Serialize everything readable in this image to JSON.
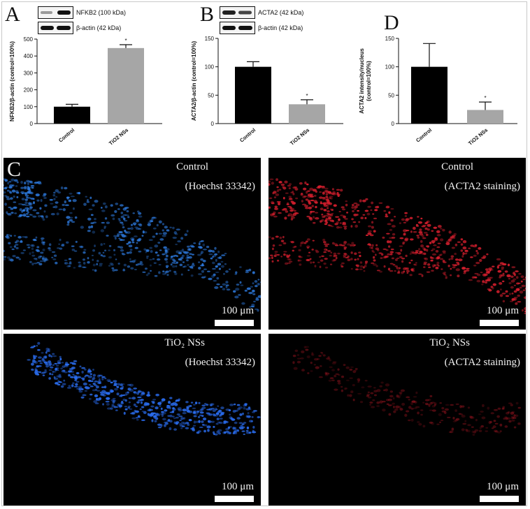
{
  "panels": {
    "A": {
      "letter": "A",
      "blot_labels": [
        "NFKB2 (100 kDa)",
        "β-actin (42 kDa)"
      ],
      "chart_data": {
        "type": "bar",
        "categories": [
          "Control",
          "TiO2 NSs"
        ],
        "values": [
          100,
          447
        ],
        "errors": [
          14,
          20
        ],
        "significance": [
          "",
          "*"
        ],
        "ylabel": "NFKB2/β-actin (control=100%)",
        "ylim": [
          0,
          500
        ],
        "yticks": [
          0,
          100,
          200,
          300,
          400,
          500
        ],
        "colors": [
          "#000000",
          "#a6a6a6"
        ]
      }
    },
    "B": {
      "letter": "B",
      "blot_labels": [
        "ACTA2 (42 kDa)",
        "β-actin (42 kDa)"
      ],
      "chart_data": {
        "type": "bar",
        "categories": [
          "Control",
          "TiO2 NSs"
        ],
        "values": [
          100,
          34
        ],
        "errors": [
          9,
          8
        ],
        "significance": [
          "",
          "*"
        ],
        "ylabel": "ACTA2/β-actin (control=100%)",
        "ylim": [
          0,
          150
        ],
        "yticks": [
          0,
          50,
          100,
          150
        ],
        "colors": [
          "#000000",
          "#a6a6a6"
        ]
      }
    },
    "D": {
      "letter": "D",
      "chart_data": {
        "type": "bar",
        "categories": [
          "Control",
          "TiO2 NSs"
        ],
        "values": [
          100,
          24
        ],
        "errors": [
          41,
          14
        ],
        "significance": [
          "",
          "*"
        ],
        "ylabel": "ACTA2 intensity/nucleus (control=100%)",
        "ylim": [
          0,
          150
        ],
        "yticks": [
          0,
          50,
          100,
          150
        ],
        "colors": [
          "#000000",
          "#a6a6a6"
        ]
      }
    },
    "C": {
      "letter": "C",
      "images": [
        {
          "title": "Control",
          "stain": "(Hoechst 33342)",
          "scale": "100 μm",
          "color": "#2f7fe8",
          "intensity": 0.9
        },
        {
          "title": "Control",
          "stain": "(ACTA2 staining)",
          "scale": "100 μm",
          "color": "#d81f2e",
          "intensity": 1.0
        },
        {
          "title": "TiO₂ NSs",
          "stain": "(Hoechst 33342)",
          "scale": "100 μm",
          "color": "#2a6df0",
          "intensity": 1.0
        },
        {
          "title": "TiO₂ NSs",
          "stain": "(ACTA2 staining)",
          "scale": "100 μm",
          "color": "#c21a28",
          "intensity": 0.45
        }
      ]
    }
  }
}
